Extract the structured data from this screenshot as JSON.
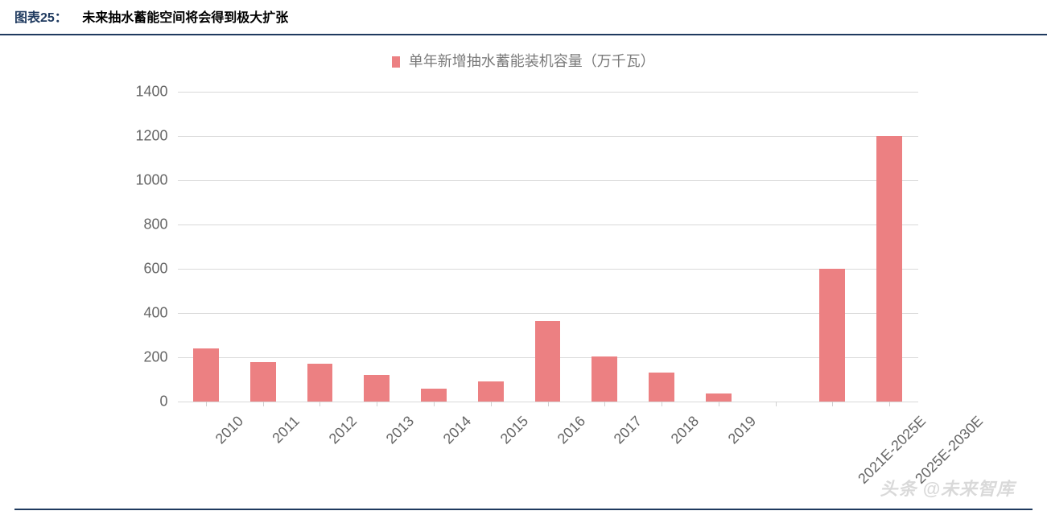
{
  "header": {
    "figure_no": "图表25：",
    "title": "未来抽水蓄能空间将会得到极大扩张"
  },
  "chart": {
    "type": "bar",
    "legend_label": "单年新增抽水蓄能装机容量（万千瓦）",
    "bar_color": "#ec8082",
    "legend_swatch_color": "#ec8082",
    "legend_text_color": "#7a7a7a",
    "background_color": "#ffffff",
    "grid_color": "#d9d9d9",
    "axis_label_color": "#666666",
    "title_rule_color": "#1f3a5f",
    "ylim": [
      0,
      1400
    ],
    "ytick_step": 200,
    "yticks": [
      0,
      200,
      400,
      600,
      800,
      1000,
      1200,
      1400
    ],
    "label_fontsize": 18,
    "title_fontsize": 16,
    "legend_fontsize": 18,
    "x_label_rotation_deg": -45,
    "bar_width": 0.45,
    "slot_count": 13,
    "categories": [
      "2010",
      "2011",
      "2012",
      "2013",
      "2014",
      "2015",
      "2016",
      "2017",
      "2018",
      "2019",
      "",
      "2021E-2025E",
      "2025E-2030E"
    ],
    "values": [
      240,
      180,
      170,
      120,
      60,
      90,
      365,
      205,
      130,
      35,
      null,
      600,
      1200
    ]
  },
  "watermark": "头条 @未来智库"
}
